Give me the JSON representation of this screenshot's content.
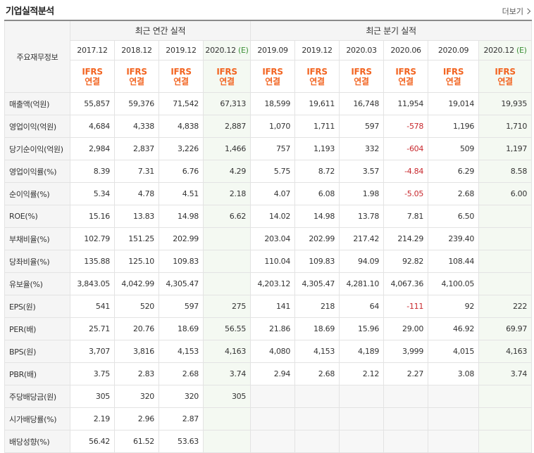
{
  "header": {
    "title": "기업실적분석",
    "more": "더보기"
  },
  "table": {
    "row_header_label": "주요재무정보",
    "group_annual": "최근 연간 실적",
    "group_quarter": "최근 분기 실적",
    "annual_dates": [
      "2017.12",
      "2018.12",
      "2019.12",
      "2020.12"
    ],
    "quarter_dates": [
      "2019.09",
      "2019.12",
      "2020.03",
      "2020.06",
      "2020.09",
      "2020.12"
    ],
    "estimate_mark": "(E)",
    "ifrs_top": "IFRS",
    "ifrs_bottom": "연결",
    "rows": [
      {
        "label": "매출액(억원)",
        "values": [
          "55,857",
          "59,376",
          "71,542",
          "67,313",
          "18,599",
          "19,611",
          "16,748",
          "11,954",
          "19,014",
          "19,935"
        ]
      },
      {
        "label": "영업이익(억원)",
        "values": [
          "4,684",
          "4,338",
          "4,838",
          "2,887",
          "1,070",
          "1,711",
          "597",
          "-578",
          "1,196",
          "1,710"
        ]
      },
      {
        "label": "당기순이익(억원)",
        "values": [
          "2,984",
          "2,837",
          "3,226",
          "1,466",
          "757",
          "1,193",
          "332",
          "-604",
          "509",
          "1,197"
        ]
      },
      {
        "label": "영업이익률(%)",
        "values": [
          "8.39",
          "7.31",
          "6.76",
          "4.29",
          "5.75",
          "8.72",
          "3.57",
          "-4.84",
          "6.29",
          "8.58"
        ]
      },
      {
        "label": "순이익률(%)",
        "values": [
          "5.34",
          "4.78",
          "4.51",
          "2.18",
          "4.07",
          "6.08",
          "1.98",
          "-5.05",
          "2.68",
          "6.00"
        ]
      },
      {
        "label": "ROE(%)",
        "values": [
          "15.16",
          "13.83",
          "14.98",
          "6.62",
          "14.02",
          "14.98",
          "13.78",
          "7.81",
          "6.50",
          ""
        ]
      },
      {
        "label": "부채비율(%)",
        "values": [
          "102.79",
          "151.25",
          "202.99",
          "",
          "203.04",
          "202.99",
          "217.42",
          "214.29",
          "239.40",
          ""
        ]
      },
      {
        "label": "당좌비율(%)",
        "values": [
          "135.88",
          "125.10",
          "109.83",
          "",
          "110.04",
          "109.83",
          "94.09",
          "92.82",
          "108.44",
          ""
        ]
      },
      {
        "label": "유보율(%)",
        "values": [
          "3,843.05",
          "4,042.99",
          "4,305.47",
          "",
          "4,203.12",
          "4,305.47",
          "4,281.10",
          "4,067.36",
          "4,100.05",
          ""
        ]
      },
      {
        "label": "EPS(원)",
        "values": [
          "541",
          "520",
          "597",
          "275",
          "141",
          "218",
          "64",
          "-111",
          "92",
          "222"
        ]
      },
      {
        "label": "PER(배)",
        "values": [
          "25.71",
          "20.76",
          "18.69",
          "56.55",
          "21.86",
          "18.69",
          "15.96",
          "29.00",
          "46.92",
          "69.97"
        ]
      },
      {
        "label": "BPS(원)",
        "values": [
          "3,707",
          "3,816",
          "4,153",
          "4,163",
          "4,080",
          "4,153",
          "4,189",
          "3,999",
          "4,015",
          "4,163"
        ]
      },
      {
        "label": "PBR(배)",
        "values": [
          "3.75",
          "2.83",
          "2.68",
          "3.74",
          "2.94",
          "2.68",
          "2.12",
          "2.27",
          "3.08",
          "3.74"
        ]
      },
      {
        "label": "주당배당금(원)",
        "values": [
          "305",
          "320",
          "320",
          "305",
          "",
          "",
          "",
          "",
          "",
          ""
        ]
      },
      {
        "label": "시가배당률(%)",
        "values": [
          "2.19",
          "2.96",
          "2.87",
          "",
          "",
          "",
          "",
          "",
          "",
          ""
        ]
      },
      {
        "label": "배당성향(%)",
        "values": [
          "56.42",
          "61.52",
          "53.63",
          "",
          "",
          "",
          "",
          "",
          "",
          ""
        ]
      }
    ]
  },
  "colors": {
    "ifrs_label": "#f26522",
    "negative": "#c8282d",
    "estimate_bg": "#f4f9f2",
    "estimate_mark": "#3a8f35"
  }
}
